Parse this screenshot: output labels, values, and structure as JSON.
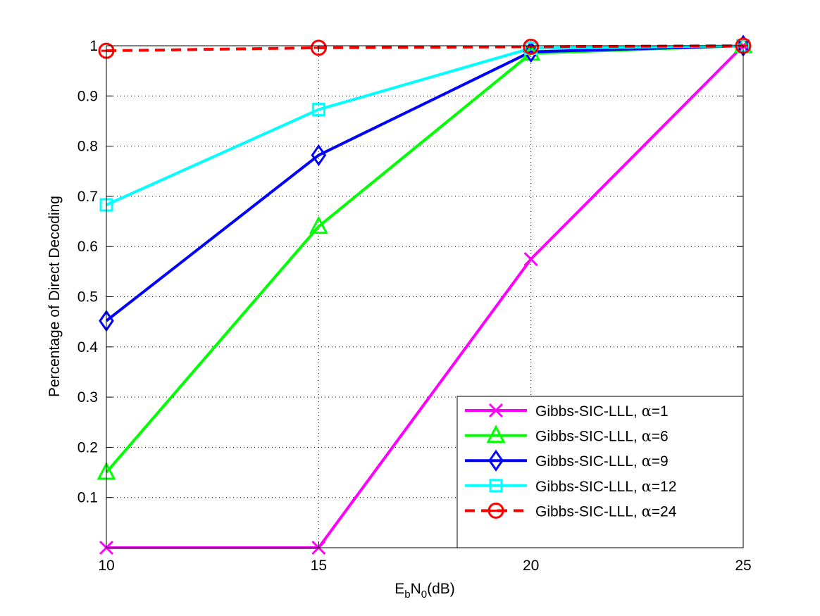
{
  "chart_data": {
    "type": "line",
    "title": "",
    "xlabel": {
      "main": "E",
      "sub1": "b",
      "mid": "N",
      "sub2": "0",
      "tail": "(dB)"
    },
    "ylabel": "Percentage of Direct Decoding",
    "xlim": [
      10,
      25
    ],
    "ylim": [
      0,
      1
    ],
    "x_ticks": [
      10,
      15,
      20,
      25
    ],
    "y_ticks": [
      0.1,
      0.2,
      0.3,
      0.4,
      0.5,
      0.6,
      0.7,
      0.8,
      0.9,
      1
    ],
    "y_tick_labels": [
      "0.1",
      "0.2",
      "0.3",
      "0.4",
      "0.5",
      "0.6",
      "0.7",
      "0.8",
      "0.9",
      "1"
    ],
    "x_tick_labels": [
      "10",
      "15",
      "20",
      "25"
    ],
    "grid": true,
    "legend_position": "bottom-right",
    "x": [
      10,
      15,
      20,
      25
    ],
    "series": [
      {
        "name": "Gibbs-SIC-LLL, ",
        "alpha": "α",
        "alpha_value": "=1",
        "values": [
          0,
          0,
          0.575,
          1.0
        ],
        "color": "#ff00ff",
        "marker": "x",
        "dashed": false
      },
      {
        "name": "Gibbs-SIC-LLL, ",
        "alpha": "α",
        "alpha_value": "=6",
        "values": [
          0.15,
          0.64,
          0.985,
          1.0
        ],
        "color": "#00ff00",
        "marker": "triangle",
        "dashed": false
      },
      {
        "name": "Gibbs-SIC-LLL, ",
        "alpha": "α",
        "alpha_value": "=9",
        "values": [
          0.452,
          0.782,
          0.988,
          1.0
        ],
        "color": "#0000ff",
        "marker": "diamond",
        "dashed": false
      },
      {
        "name": "Gibbs-SIC-LLL, ",
        "alpha": "α",
        "alpha_value": "=12",
        "values": [
          0.683,
          0.873,
          0.995,
          1.0
        ],
        "color": "#00ffff",
        "marker": "square",
        "dashed": false
      },
      {
        "name": "Gibbs-SIC-LLL, ",
        "alpha": "α",
        "alpha_value": "=24",
        "values": [
          0.99,
          0.996,
          0.998,
          1.0
        ],
        "color": "#ff0000",
        "marker": "circle",
        "dashed": true
      }
    ]
  }
}
